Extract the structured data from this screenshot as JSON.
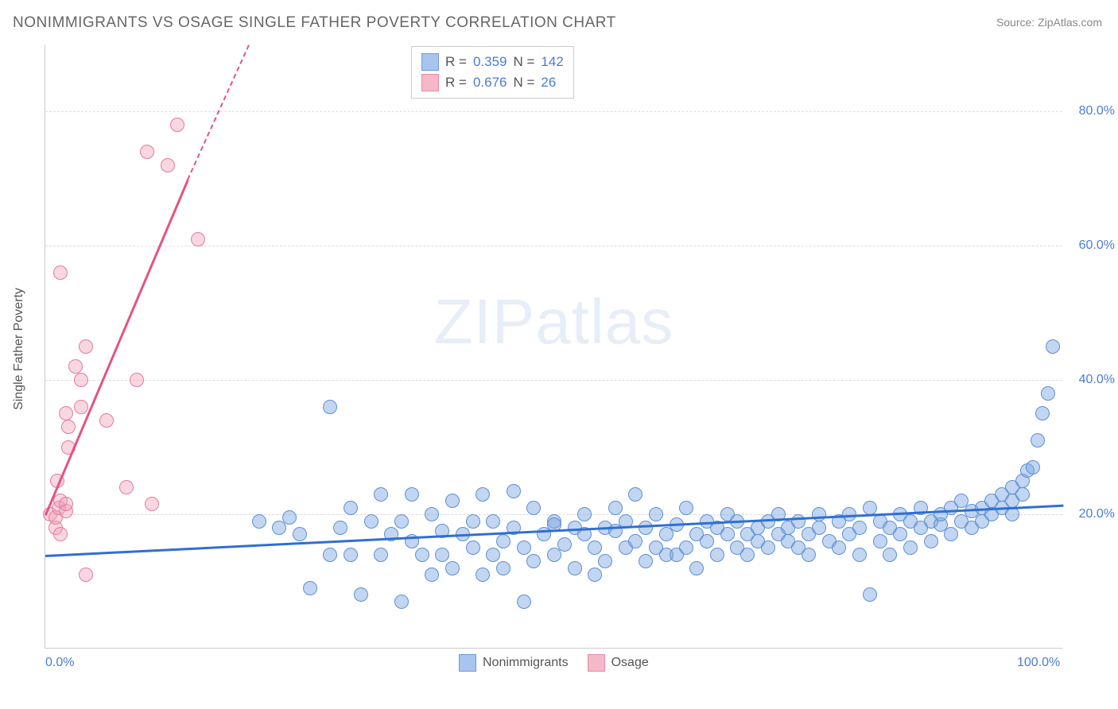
{
  "title": "NONIMMIGRANTS VS OSAGE SINGLE FATHER POVERTY CORRELATION CHART",
  "source_label": "Source: ",
  "source_value": "ZipAtlas.com",
  "watermark_part1": "ZIP",
  "watermark_part2": "atlas",
  "chart": {
    "type": "scatter",
    "background_color": "#ffffff",
    "grid_color": "#dddddd",
    "axis_color": "#cccccc",
    "tick_label_color": "#4a7dd4",
    "y_axis_title": "Single Father Poverty",
    "y_axis_title_color": "#555555",
    "title_fontsize": 19,
    "label_fontsize": 16,
    "xlim": [
      0,
      100
    ],
    "ylim": [
      0,
      90
    ],
    "x_ticks": [
      {
        "value": 0,
        "label": "0.0%"
      },
      {
        "value": 100,
        "label": "100.0%"
      }
    ],
    "y_ticks": [
      {
        "value": 20,
        "label": "20.0%"
      },
      {
        "value": 40,
        "label": "40.0%"
      },
      {
        "value": 60,
        "label": "60.0%"
      },
      {
        "value": 80,
        "label": "80.0%"
      }
    ],
    "legend_top": [
      {
        "swatch_fill": "#a7c5ef",
        "swatch_border": "#6a9be0",
        "r_label": "R = ",
        "r_value": "0.359",
        "n_label": "   N = ",
        "n_value": "142"
      },
      {
        "swatch_fill": "#f5b8c8",
        "swatch_border": "#e88aa5",
        "r_label": "R = ",
        "r_value": "0.676",
        "n_label": "   N = ",
        "n_value": " 26"
      }
    ],
    "legend_bottom": [
      {
        "swatch_fill": "#a7c5ef",
        "swatch_border": "#6a9be0",
        "label": "Nonimmigrants"
      },
      {
        "swatch_fill": "#f5b8c8",
        "swatch_border": "#e88aa5",
        "label": "Osage"
      }
    ],
    "series": [
      {
        "name": "Nonimmigrants",
        "marker_fill": "rgba(120,165,225,0.45)",
        "marker_border": "#5d8fd6",
        "marker_radius": 9,
        "trend_color": "#2f6fd4",
        "trend_width": 2.5,
        "trend_start": {
          "x": 0,
          "y": 14
        },
        "trend_end": {
          "x": 100,
          "y": 21.5
        },
        "points": [
          {
            "x": 21,
            "y": 19
          },
          {
            "x": 23,
            "y": 18
          },
          {
            "x": 24,
            "y": 19.5
          },
          {
            "x": 25,
            "y": 17
          },
          {
            "x": 26,
            "y": 9
          },
          {
            "x": 28,
            "y": 36
          },
          {
            "x": 28,
            "y": 14
          },
          {
            "x": 29,
            "y": 18
          },
          {
            "x": 30,
            "y": 14
          },
          {
            "x": 30,
            "y": 21
          },
          {
            "x": 31,
            "y": 8
          },
          {
            "x": 32,
            "y": 19
          },
          {
            "x": 33,
            "y": 23
          },
          {
            "x": 33,
            "y": 14
          },
          {
            "x": 34,
            "y": 17
          },
          {
            "x": 35,
            "y": 7
          },
          {
            "x": 35,
            "y": 19
          },
          {
            "x": 36,
            "y": 16
          },
          {
            "x": 36,
            "y": 23
          },
          {
            "x": 37,
            "y": 14
          },
          {
            "x": 38,
            "y": 20
          },
          {
            "x": 38,
            "y": 11
          },
          {
            "x": 39,
            "y": 14
          },
          {
            "x": 39,
            "y": 17.5
          },
          {
            "x": 40,
            "y": 22
          },
          {
            "x": 40,
            "y": 12
          },
          {
            "x": 41,
            "y": 17
          },
          {
            "x": 42,
            "y": 15
          },
          {
            "x": 42,
            "y": 19
          },
          {
            "x": 43,
            "y": 11
          },
          {
            "x": 43,
            "y": 23
          },
          {
            "x": 44,
            "y": 14
          },
          {
            "x": 44,
            "y": 19
          },
          {
            "x": 45,
            "y": 16
          },
          {
            "x": 45,
            "y": 12
          },
          {
            "x": 46,
            "y": 23.5
          },
          {
            "x": 46,
            "y": 18
          },
          {
            "x": 47,
            "y": 7
          },
          {
            "x": 47,
            "y": 15
          },
          {
            "x": 48,
            "y": 21
          },
          {
            "x": 48,
            "y": 13
          },
          {
            "x": 49,
            "y": 17
          },
          {
            "x": 50,
            "y": 19
          },
          {
            "x": 50,
            "y": 18.5
          },
          {
            "x": 50,
            "y": 14
          },
          {
            "x": 51,
            "y": 15.5
          },
          {
            "x": 52,
            "y": 18
          },
          {
            "x": 52,
            "y": 12
          },
          {
            "x": 53,
            "y": 17
          },
          {
            "x": 53,
            "y": 20
          },
          {
            "x": 54,
            "y": 11
          },
          {
            "x": 54,
            "y": 15
          },
          {
            "x": 55,
            "y": 18
          },
          {
            "x": 55,
            "y": 13
          },
          {
            "x": 56,
            "y": 17.5
          },
          {
            "x": 56,
            "y": 21
          },
          {
            "x": 57,
            "y": 15
          },
          {
            "x": 57,
            "y": 19
          },
          {
            "x": 58,
            "y": 23
          },
          {
            "x": 58,
            "y": 16
          },
          {
            "x": 59,
            "y": 13
          },
          {
            "x": 59,
            "y": 18
          },
          {
            "x": 60,
            "y": 15
          },
          {
            "x": 60,
            "y": 20
          },
          {
            "x": 61,
            "y": 17
          },
          {
            "x": 61,
            "y": 14
          },
          {
            "x": 62,
            "y": 14
          },
          {
            "x": 62,
            "y": 18.5
          },
          {
            "x": 63,
            "y": 21
          },
          {
            "x": 63,
            "y": 15
          },
          {
            "x": 64,
            "y": 17
          },
          {
            "x": 64,
            "y": 12
          },
          {
            "x": 65,
            "y": 19
          },
          {
            "x": 65,
            "y": 16
          },
          {
            "x": 66,
            "y": 18
          },
          {
            "x": 66,
            "y": 14
          },
          {
            "x": 67,
            "y": 20
          },
          {
            "x": 67,
            "y": 17
          },
          {
            "x": 68,
            "y": 15
          },
          {
            "x": 68,
            "y": 19
          },
          {
            "x": 69,
            "y": 17
          },
          {
            "x": 69,
            "y": 14
          },
          {
            "x": 70,
            "y": 18
          },
          {
            "x": 70,
            "y": 16
          },
          {
            "x": 71,
            "y": 19
          },
          {
            "x": 71,
            "y": 15
          },
          {
            "x": 72,
            "y": 17
          },
          {
            "x": 72,
            "y": 20
          },
          {
            "x": 73,
            "y": 16
          },
          {
            "x": 73,
            "y": 18
          },
          {
            "x": 74,
            "y": 15
          },
          {
            "x": 74,
            "y": 19
          },
          {
            "x": 75,
            "y": 17
          },
          {
            "x": 75,
            "y": 14
          },
          {
            "x": 76,
            "y": 18
          },
          {
            "x": 76,
            "y": 20
          },
          {
            "x": 77,
            "y": 16
          },
          {
            "x": 78,
            "y": 19
          },
          {
            "x": 78,
            "y": 15
          },
          {
            "x": 79,
            "y": 17
          },
          {
            "x": 79,
            "y": 20
          },
          {
            "x": 80,
            "y": 18
          },
          {
            "x": 80,
            "y": 14
          },
          {
            "x": 81,
            "y": 8
          },
          {
            "x": 81,
            "y": 21
          },
          {
            "x": 82,
            "y": 19
          },
          {
            "x": 82,
            "y": 16
          },
          {
            "x": 83,
            "y": 14
          },
          {
            "x": 83,
            "y": 18
          },
          {
            "x": 84,
            "y": 20
          },
          {
            "x": 84,
            "y": 17
          },
          {
            "x": 85,
            "y": 15
          },
          {
            "x": 85,
            "y": 19
          },
          {
            "x": 86,
            "y": 18
          },
          {
            "x": 86,
            "y": 21
          },
          {
            "x": 87,
            "y": 16
          },
          {
            "x": 87,
            "y": 19
          },
          {
            "x": 88,
            "y": 18.5
          },
          {
            "x": 88,
            "y": 20
          },
          {
            "x": 89,
            "y": 17
          },
          {
            "x": 89,
            "y": 21
          },
          {
            "x": 90,
            "y": 19
          },
          {
            "x": 90,
            "y": 22
          },
          {
            "x": 91,
            "y": 20.5
          },
          {
            "x": 91,
            "y": 18
          },
          {
            "x": 92,
            "y": 21
          },
          {
            "x": 92,
            "y": 19
          },
          {
            "x": 93,
            "y": 22
          },
          {
            "x": 93,
            "y": 20
          },
          {
            "x": 94,
            "y": 23
          },
          {
            "x": 94,
            "y": 21
          },
          {
            "x": 95,
            "y": 20
          },
          {
            "x": 95,
            "y": 24
          },
          {
            "x": 95,
            "y": 22
          },
          {
            "x": 96,
            "y": 25
          },
          {
            "x": 96,
            "y": 23
          },
          {
            "x": 96.5,
            "y": 26.5
          },
          {
            "x": 97,
            "y": 27
          },
          {
            "x": 97.5,
            "y": 31
          },
          {
            "x": 98,
            "y": 35
          },
          {
            "x": 98.5,
            "y": 38
          },
          {
            "x": 99,
            "y": 45
          }
        ]
      },
      {
        "name": "Osage",
        "marker_fill": "rgba(240,155,180,0.40)",
        "marker_border": "#e57a9c",
        "marker_radius": 9,
        "trend_color": "#e3557e",
        "trend_width": 2.5,
        "trend_start": {
          "x": 0,
          "y": 20
        },
        "trend_end": {
          "x": 14,
          "y": 70
        },
        "trend_dash_end": {
          "x": 20,
          "y": 90
        },
        "points": [
          {
            "x": 0.5,
            "y": 20
          },
          {
            "x": 1,
            "y": 18
          },
          {
            "x": 1,
            "y": 19.5
          },
          {
            "x": 1.3,
            "y": 21
          },
          {
            "x": 1.5,
            "y": 17
          },
          {
            "x": 1.5,
            "y": 22
          },
          {
            "x": 2,
            "y": 20.5
          },
          {
            "x": 2,
            "y": 21.5
          },
          {
            "x": 1.2,
            "y": 25
          },
          {
            "x": 2.3,
            "y": 30
          },
          {
            "x": 2.3,
            "y": 33
          },
          {
            "x": 3.5,
            "y": 36
          },
          {
            "x": 2,
            "y": 35
          },
          {
            "x": 3.5,
            "y": 40
          },
          {
            "x": 3,
            "y": 42
          },
          {
            "x": 4,
            "y": 45
          },
          {
            "x": 1.5,
            "y": 56
          },
          {
            "x": 4,
            "y": 11
          },
          {
            "x": 6,
            "y": 34
          },
          {
            "x": 8,
            "y": 24
          },
          {
            "x": 9,
            "y": 40
          },
          {
            "x": 10,
            "y": 74
          },
          {
            "x": 10.5,
            "y": 21.5
          },
          {
            "x": 12,
            "y": 72
          },
          {
            "x": 13,
            "y": 78
          },
          {
            "x": 15,
            "y": 61
          }
        ]
      }
    ]
  }
}
